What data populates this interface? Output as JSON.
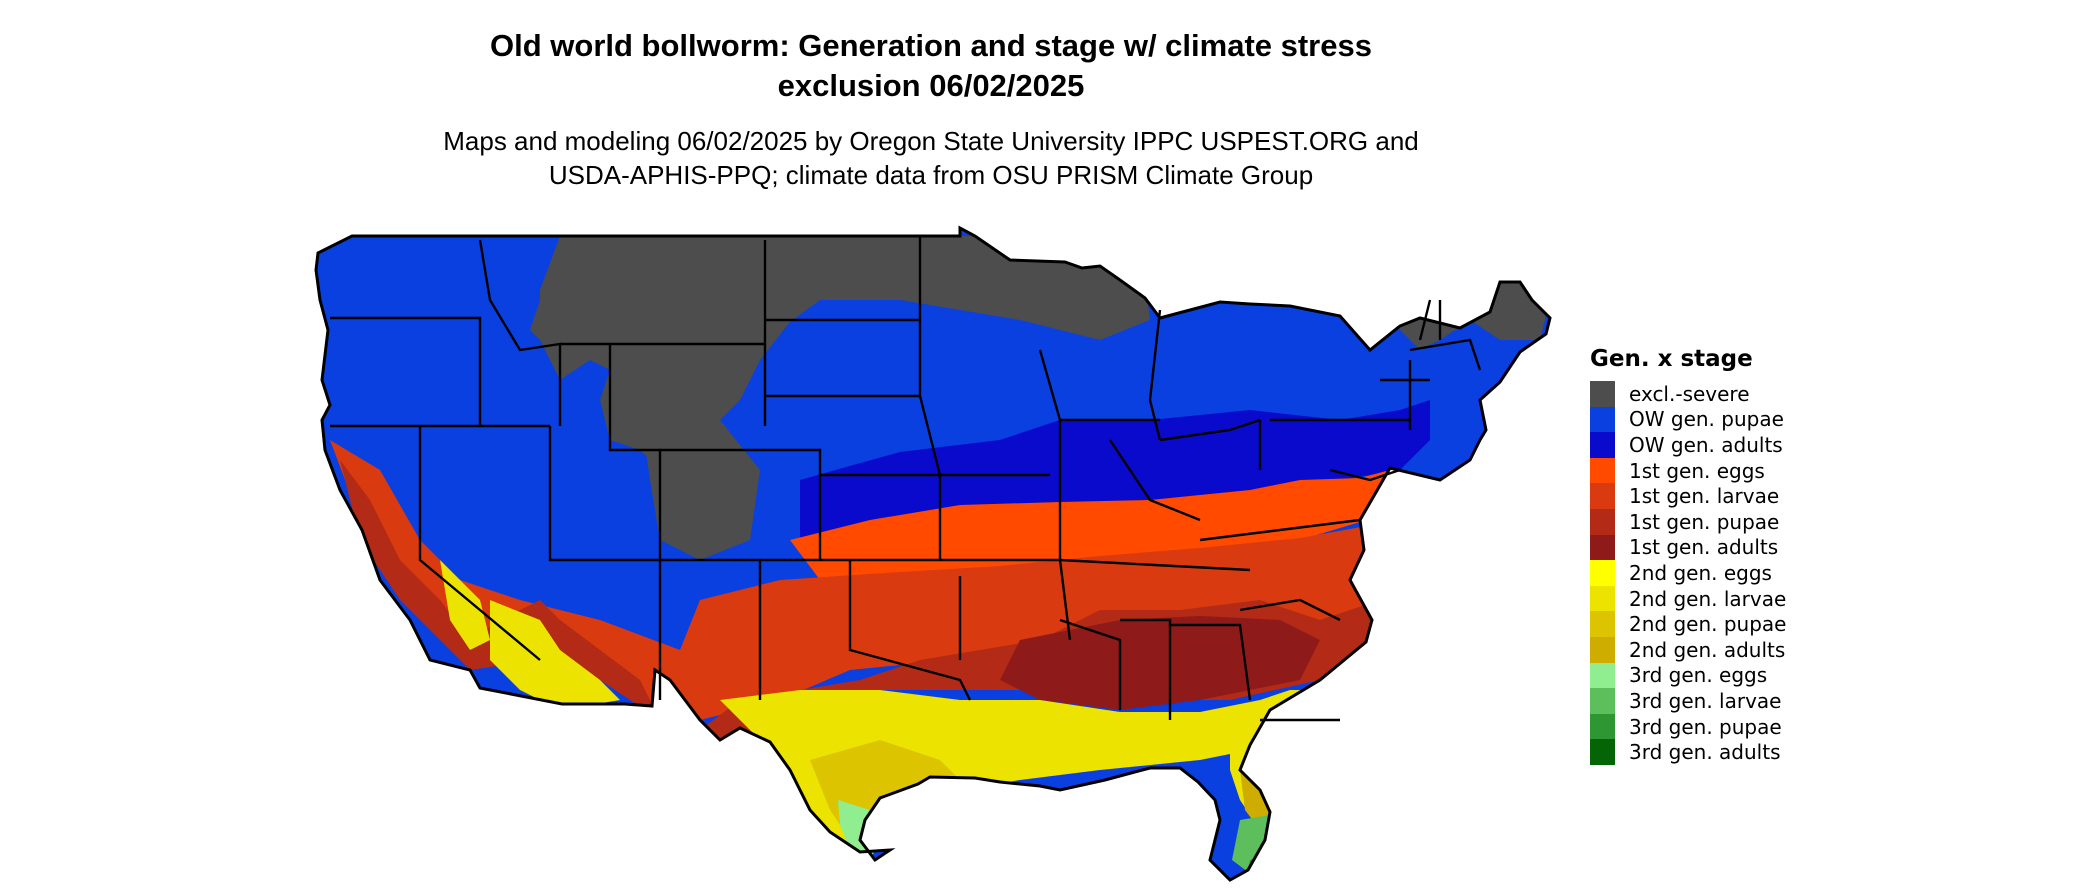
{
  "title_line1": "Old world bollworm: Generation and stage w/ climate stress",
  "title_line2": "exclusion 06/02/2025",
  "subtitle_line1": "Maps and modeling 06/02/2025 by Oregon State University IPPC USPEST.ORG and",
  "subtitle_line2": "USDA-APHIS-PPQ; climate data from OSU PRISM Climate Group",
  "legend": {
    "title": "Gen. x stage",
    "items": [
      {
        "label": "excl.-severe",
        "color": "#4d4d4d"
      },
      {
        "label": "OW gen. pupae",
        "color": "#0a3fe0"
      },
      {
        "label": "OW gen. adults",
        "color": "#0a0acc"
      },
      {
        "label": "1st gen. eggs",
        "color": "#ff4a00"
      },
      {
        "label": "1st gen. larvae",
        "color": "#d93a10"
      },
      {
        "label": "1st gen. pupae",
        "color": "#b32a16"
      },
      {
        "label": "1st gen. adults",
        "color": "#8e1a1a"
      },
      {
        "label": "2nd gen. eggs",
        "color": "#ffff00"
      },
      {
        "label": "2nd gen. larvae",
        "color": "#ece400"
      },
      {
        "label": "2nd gen. pupae",
        "color": "#dcc400"
      },
      {
        "label": "2nd gen. adults",
        "color": "#cfad00"
      },
      {
        "label": "3rd gen. eggs",
        "color": "#90ee90"
      },
      {
        "label": "3rd gen. larvae",
        "color": "#5cbf5c"
      },
      {
        "label": "3rd gen. pupae",
        "color": "#2e9632"
      },
      {
        "label": "3rd gen. adults",
        "color": "#056405"
      }
    ]
  }
}
